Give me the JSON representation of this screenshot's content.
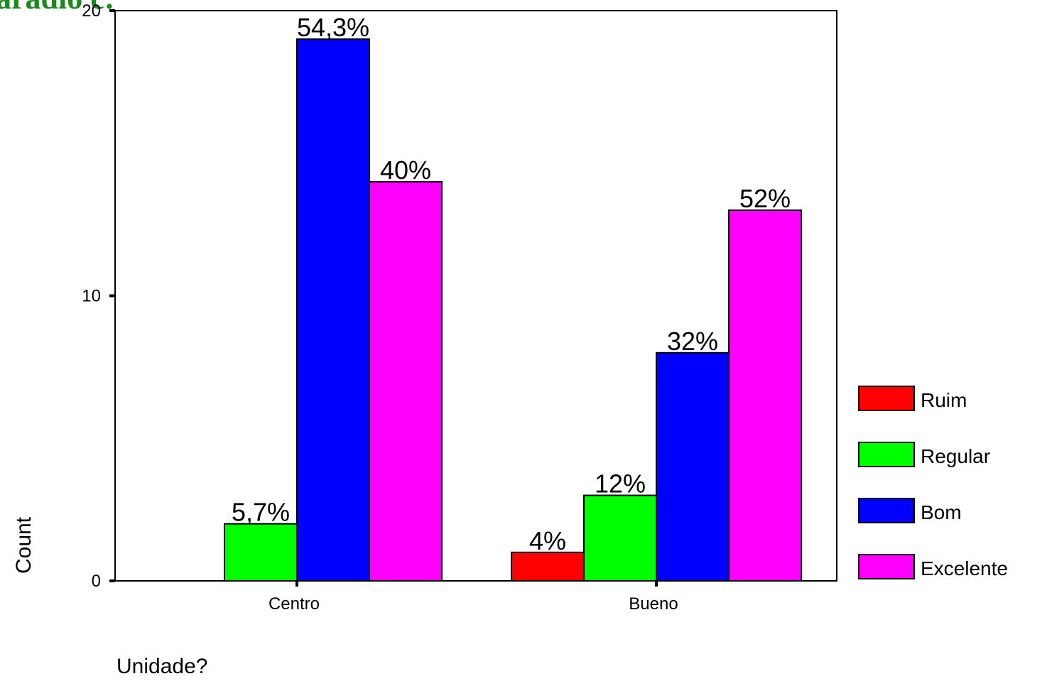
{
  "title": "aradio c:",
  "colors": {
    "title": "#1a8a1a",
    "Ruim": "#ff0000",
    "Regular": "#00ff00",
    "Bom": "#0000ff",
    "Excelente": "#ff00ff"
  },
  "chart_data": {
    "type": "bar",
    "title": "",
    "xlabel": "Unidade?",
    "ylabel": "Count",
    "ylim": [
      0,
      20
    ],
    "yticks": [
      "0",
      "10",
      "20"
    ],
    "grid": false,
    "legend_position": "right",
    "categories": [
      "Centro",
      "Bueno"
    ],
    "series": [
      {
        "name": "Ruim",
        "values": [
          0,
          1
        ],
        "labels": [
          "",
          "4%"
        ]
      },
      {
        "name": "Regular",
        "values": [
          2,
          3
        ],
        "labels": [
          "5,7%",
          "12%"
        ]
      },
      {
        "name": "Bom",
        "values": [
          19,
          8
        ],
        "labels": [
          "54,3%",
          "32%"
        ]
      },
      {
        "name": "Excelente",
        "values": [
          14,
          13
        ],
        "labels": [
          "40%",
          "52%"
        ]
      }
    ]
  }
}
